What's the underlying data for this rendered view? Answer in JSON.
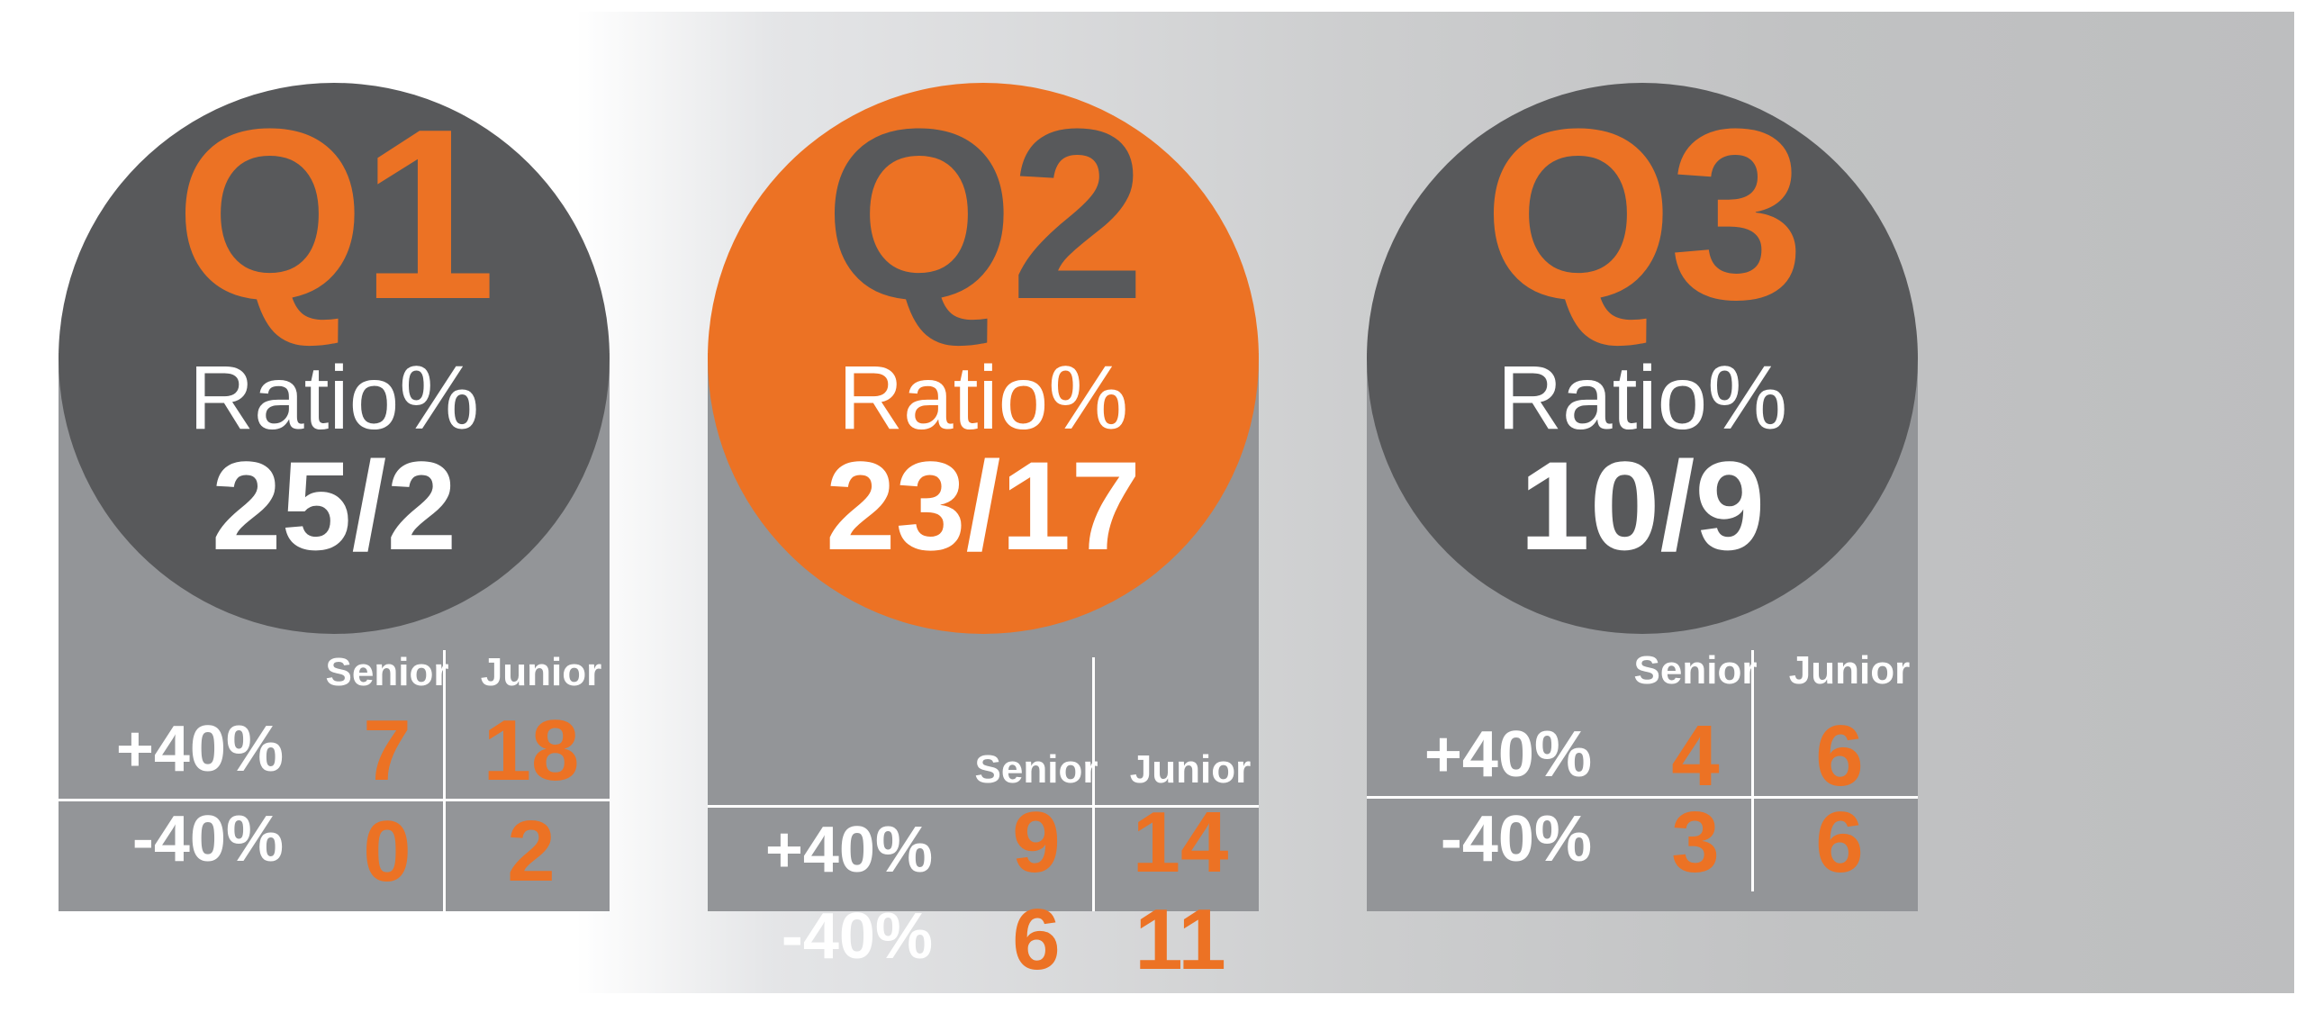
{
  "cards": [
    {
      "quarter": "Q1",
      "ratio_label": "Ratio%",
      "ratio_value": "25/2",
      "headers": {
        "senior": "Senior",
        "junior": "Junior"
      },
      "rows": [
        {
          "label": "+40%",
          "senior": "7",
          "junior": "18"
        },
        {
          "label": "-40%",
          "senior": "0",
          "junior": "2"
        }
      ],
      "circle_color": "#58595b",
      "quarter_color": "#ec7224"
    },
    {
      "quarter": "Q2",
      "ratio_label": "Ratio%",
      "ratio_value": "23/17",
      "headers": {
        "senior": "Senior",
        "junior": "Junior"
      },
      "rows": [
        {
          "label": "+40%",
          "senior": "9",
          "junior": "14"
        },
        {
          "label": "-40%",
          "senior": "6",
          "junior": "11"
        }
      ],
      "circle_color": "#ec7224",
      "quarter_color": "#58595b"
    },
    {
      "quarter": "Q3",
      "ratio_label": "Ratio%",
      "ratio_value": "10/9",
      "headers": {
        "senior": "Senior",
        "junior": "Junior"
      },
      "rows": [
        {
          "label": "+40%",
          "senior": "4",
          "junior": "6"
        },
        {
          "label": "-40%",
          "senior": "3",
          "junior": "6"
        }
      ],
      "circle_color": "#58595b",
      "quarter_color": "#ec7224"
    }
  ],
  "colors": {
    "accent_orange": "#ec7224",
    "dark_gray": "#58595b",
    "panel_gray": "#939598",
    "text_white": "#ffffff"
  }
}
